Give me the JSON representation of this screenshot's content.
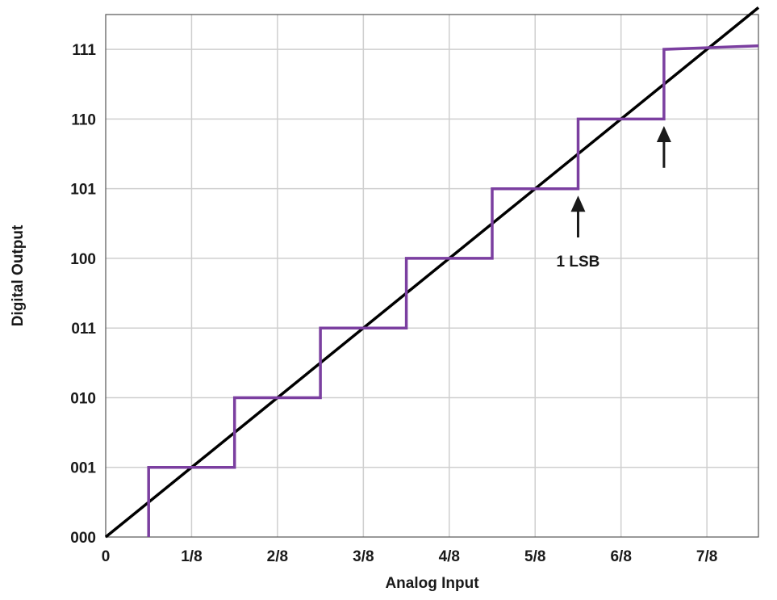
{
  "chart_data": {
    "type": "line",
    "title": "",
    "xlabel": "Analog Input",
    "ylabel": "Digital Output",
    "xlim": [
      0,
      0.95
    ],
    "ylim": [
      0,
      7.5
    ],
    "x_ticks": [
      {
        "value": 0,
        "label": "0"
      },
      {
        "value": 0.125,
        "label": "1/8"
      },
      {
        "value": 0.25,
        "label": "2/8"
      },
      {
        "value": 0.375,
        "label": "3/8"
      },
      {
        "value": 0.5,
        "label": "4/8"
      },
      {
        "value": 0.625,
        "label": "5/8"
      },
      {
        "value": 0.75,
        "label": "6/8"
      },
      {
        "value": 0.875,
        "label": "7/8"
      }
    ],
    "y_ticks": [
      {
        "value": 0,
        "label": "000"
      },
      {
        "value": 1,
        "label": "001"
      },
      {
        "value": 2,
        "label": "010"
      },
      {
        "value": 3,
        "label": "011"
      },
      {
        "value": 4,
        "label": "100"
      },
      {
        "value": 5,
        "label": "101"
      },
      {
        "value": 6,
        "label": "110"
      },
      {
        "value": 7,
        "label": "111"
      }
    ],
    "grid": true,
    "series": [
      {
        "color": "#000000",
        "style": "solid",
        "points": [
          [
            0,
            0
          ],
          [
            0.95,
            7.6
          ]
        ]
      },
      {
        "color": "#7B3FA0",
        "style": "step",
        "points": [
          [
            0.0625,
            0
          ],
          [
            0.0625,
            1
          ],
          [
            0.1875,
            1
          ],
          [
            0.1875,
            2
          ],
          [
            0.3125,
            2
          ],
          [
            0.3125,
            3
          ],
          [
            0.4375,
            3
          ],
          [
            0.4375,
            4
          ],
          [
            0.5625,
            4
          ],
          [
            0.5625,
            5
          ],
          [
            0.6875,
            5
          ],
          [
            0.6875,
            6
          ],
          [
            0.8125,
            6
          ],
          [
            0.8125,
            7
          ],
          [
            0.95,
            7.05
          ]
        ]
      }
    ],
    "annotations": [
      {
        "text": "1 LSB",
        "arrows": [
          {
            "x": 0.6875,
            "y_from": 4.3,
            "y_to": 4.9
          },
          {
            "x": 0.8125,
            "y_from": 5.3,
            "y_to": 5.9
          }
        ]
      }
    ]
  }
}
